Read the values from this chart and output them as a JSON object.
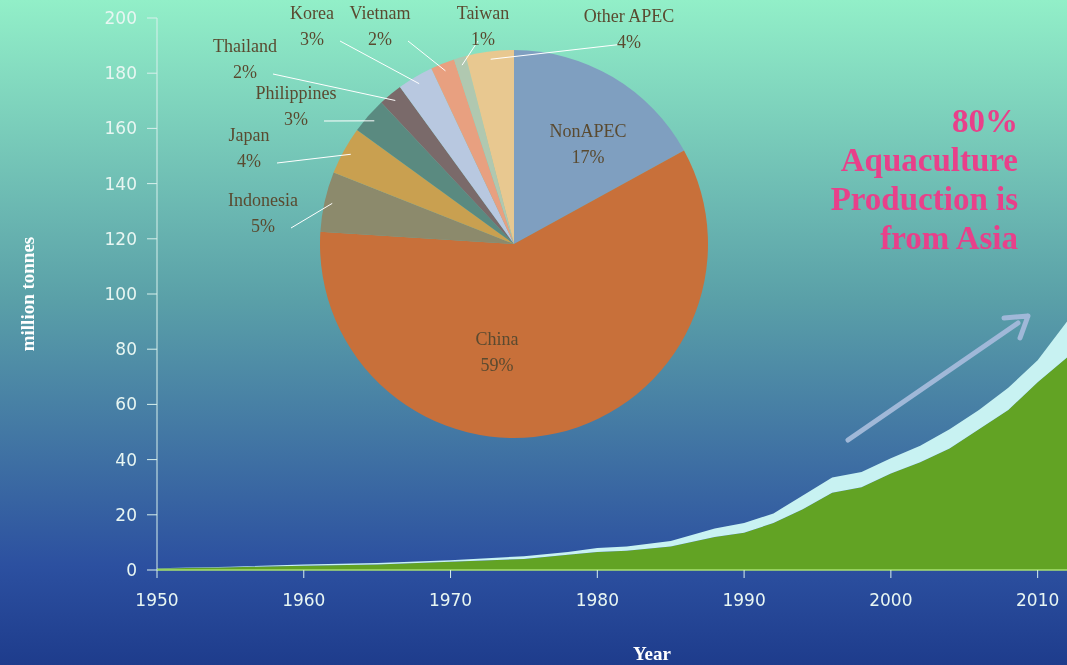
{
  "chart_data": [
    {
      "type": "area",
      "stacked": true,
      "xlabel": "Year",
      "ylabel": "million tonnes",
      "x": [
        1950,
        1955,
        1960,
        1965,
        1970,
        1975,
        1978,
        1980,
        1982,
        1985,
        1988,
        1990,
        1992,
        1994,
        1996,
        1998,
        2000,
        2002,
        2004,
        2006,
        2008,
        2010,
        2012
      ],
      "series": [
        {
          "color": "#62a324",
          "values": [
            0.5,
            1,
            1.5,
            2,
            3,
            4,
            5.5,
            6.5,
            7,
            8.5,
            12,
            13.5,
            17,
            22,
            28,
            30,
            35,
            39,
            44,
            51,
            58,
            68,
            77
          ]
        },
        {
          "color": "#c8f2f2",
          "values": [
            0.1,
            0.2,
            0.5,
            0.5,
            0.5,
            1,
            1,
            1.5,
            1.5,
            2,
            3,
            3.5,
            3.5,
            5,
            5.5,
            5.5,
            5.5,
            6,
            7,
            7,
            8,
            8,
            13
          ]
        }
      ],
      "xlim": [
        1950,
        2012
      ],
      "xticks": [
        1950,
        1960,
        1970,
        1980,
        1990,
        2000,
        2010
      ],
      "ylim": [
        0,
        200
      ],
      "yticks": [
        0,
        20,
        40,
        60,
        80,
        100,
        120,
        140,
        160,
        180,
        200
      ],
      "annotations": [
        "80%\nAquaculture\nProduction is\nfrom Asia"
      ]
    },
    {
      "type": "pie",
      "value_labels": [
        "17%",
        "59%",
        "5%",
        "4%",
        "3%",
        "2%",
        "3%",
        "2%",
        "1%",
        "4%"
      ],
      "categories": [
        "NonAPEC",
        "China",
        "Indonesia",
        "Japan",
        "Philippines",
        "Thailand",
        "Korea",
        "Vietnam",
        "Taiwan",
        "Other APEC"
      ],
      "values": [
        17,
        59,
        5,
        4,
        3,
        2,
        3,
        2,
        1,
        4
      ],
      "colors": [
        "#7f9fc0",
        "#c8703a",
        "#8c8a6c",
        "#c9a050",
        "#5a8a80",
        "#7a6a6a",
        "#b8c8e0",
        "#e8a080",
        "#b0c8b0",
        "#e8c890"
      ]
    }
  ]
}
